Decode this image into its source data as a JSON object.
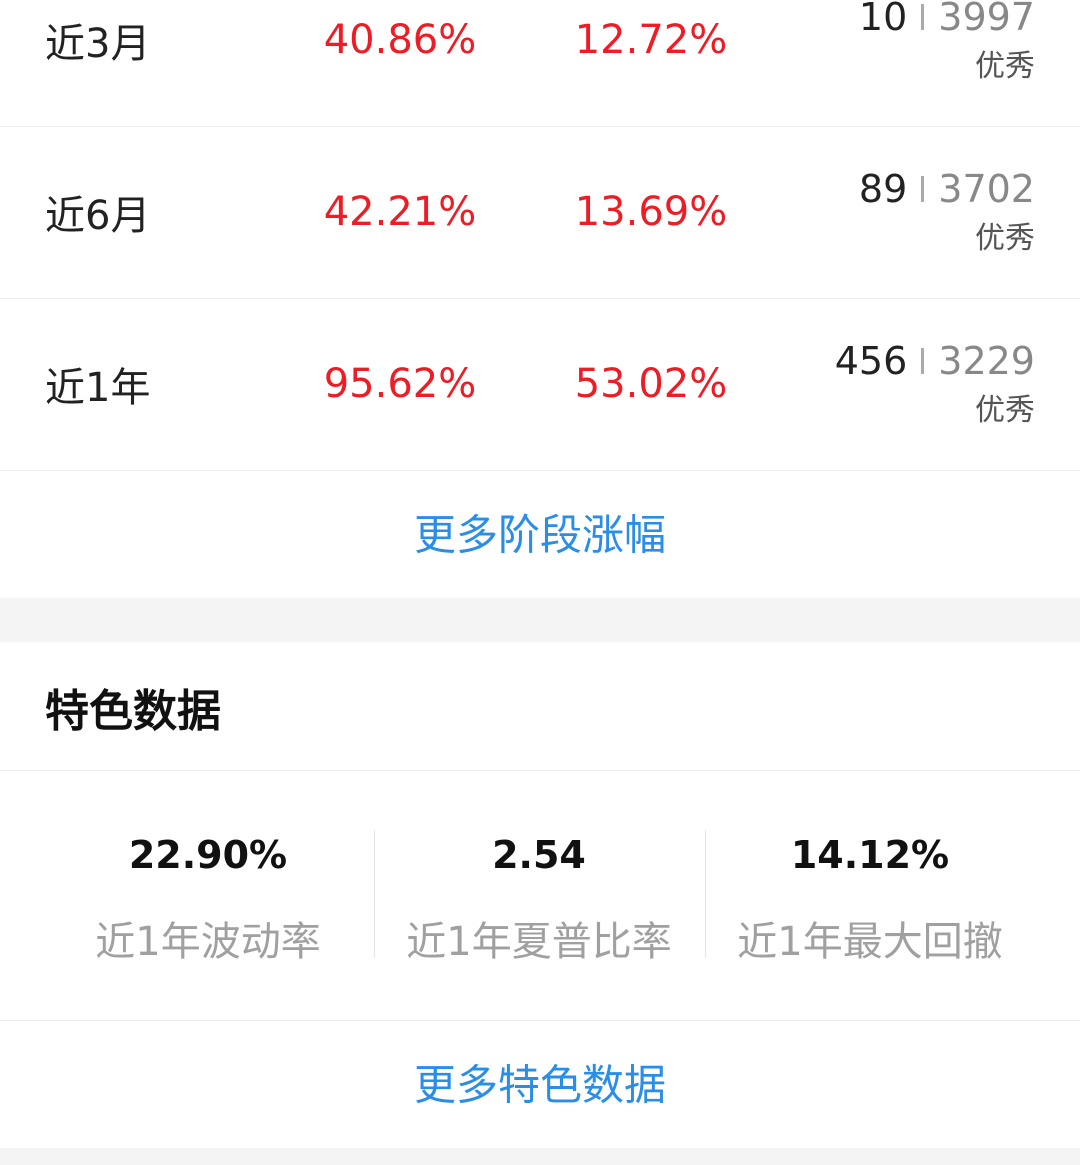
{
  "periods": [
    {
      "label": "近3月",
      "return": "40.86%",
      "other": "12.72%",
      "rank": "10",
      "total": "3997",
      "rating": "优秀"
    },
    {
      "label": "近6月",
      "return": "42.21%",
      "other": "13.69%",
      "rank": "89",
      "total": "3702",
      "rating": "优秀"
    },
    {
      "label": "近1年",
      "return": "95.62%",
      "other": "53.02%",
      "rank": "456",
      "total": "3229",
      "rating": "优秀"
    }
  ],
  "more_periods_link": "更多阶段涨幅",
  "feature": {
    "title": "特色数据",
    "metrics": [
      {
        "value": "22.90%",
        "label": "近1年波动率"
      },
      {
        "value": "2.54",
        "label": "近1年夏普比率"
      },
      {
        "value": "14.12%",
        "label": "近1年最大回撤"
      }
    ],
    "more_link": "更多特色数据"
  }
}
